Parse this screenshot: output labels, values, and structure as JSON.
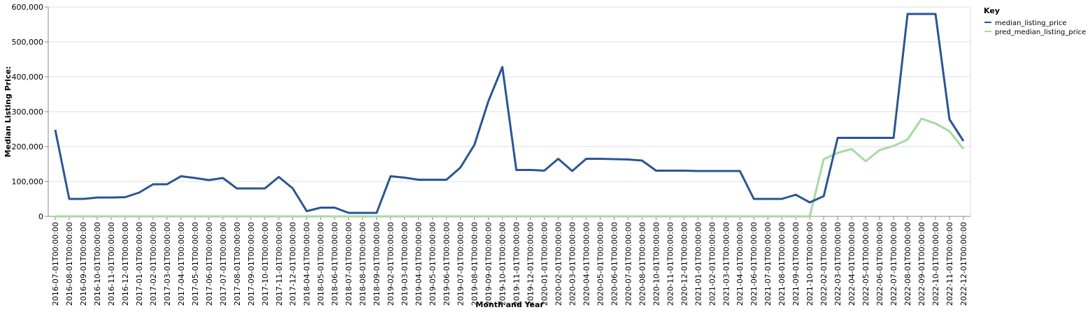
{
  "chart_data": {
    "type": "line",
    "x_label": "Month and Year",
    "y_label": "Median Listing Price:",
    "legend_title": "Key",
    "legend_position": "right",
    "grid": true,
    "categories": [
      "2016-07-01T00:00:00",
      "2016-08-01T00:00:00",
      "2016-09-01T00:00:00",
      "2016-10-01T00:00:00",
      "2016-11-01T00:00:00",
      "2016-12-01T00:00:00",
      "2017-01-01T00:00:00",
      "2017-02-01T00:00:00",
      "2017-03-01T00:00:00",
      "2017-04-01T00:00:00",
      "2017-05-01T00:00:00",
      "2017-06-01T00:00:00",
      "2017-07-01T00:00:00",
      "2017-08-01T00:00:00",
      "2017-09-01T00:00:00",
      "2017-10-01T00:00:00",
      "2017-11-01T00:00:00",
      "2017-12-01T00:00:00",
      "2018-04-01T00:00:00",
      "2018-05-01T00:00:00",
      "2018-06-01T00:00:00",
      "2018-07-01T00:00:00",
      "2018-08-01T00:00:00",
      "2018-09-01T00:00:00",
      "2019-02-01T00:00:00",
      "2019-03-01T00:00:00",
      "2019-04-01T00:00:00",
      "2019-05-01T00:00:00",
      "2019-06-01T00:00:00",
      "2019-07-01T00:00:00",
      "2019-08-01T00:00:00",
      "2019-09-01T00:00:00",
      "2019-10-01T00:00:00",
      "2019-11-01T00:00:00",
      "2019-12-01T00:00:00",
      "2020-01-01T00:00:00",
      "2020-02-01T00:00:00",
      "2020-03-01T00:00:00",
      "2020-04-01T00:00:00",
      "2020-05-01T00:00:00",
      "2020-06-01T00:00:00",
      "2020-07-01T00:00:00",
      "2020-08-01T00:00:00",
      "2020-10-01T00:00:00",
      "2020-11-01T00:00:00",
      "2020-12-01T00:00:00",
      "2021-01-01T00:00:00",
      "2021-02-01T00:00:00",
      "2021-03-01T00:00:00",
      "2021-04-01T00:00:00",
      "2021-06-01T00:00:00",
      "2021-07-01T00:00:00",
      "2021-08-01T00:00:00",
      "2021-09-01T00:00:00",
      "2021-10-01T00:00:00",
      "2022-02-01T00:00:00",
      "2022-03-01T00:00:00",
      "2022-04-01T00:00:00",
      "2022-05-01T00:00:00",
      "2022-06-01T00:00:00",
      "2022-07-01T00:00:00",
      "2022-08-01T00:00:00",
      "2022-09-01T00:00:00",
      "2022-10-01T00:00:00",
      "2022-11-01T00:00:00",
      "2022-12-01T00:00:00"
    ],
    "series": [
      {
        "name": "median_listing_price",
        "color": "#2a5594",
        "values": [
          248000,
          50000,
          50000,
          54000,
          54000,
          55000,
          68000,
          92000,
          92000,
          115000,
          110000,
          104000,
          110000,
          80000,
          80000,
          80000,
          113000,
          80000,
          15000,
          25000,
          25000,
          10000,
          10000,
          10000,
          115000,
          111000,
          105000,
          105000,
          105000,
          140000,
          205000,
          330000,
          428000,
          133000,
          133000,
          131000,
          165000,
          130000,
          165000,
          165000,
          164000,
          163000,
          160000,
          131000,
          131000,
          131000,
          130000,
          130000,
          130000,
          130000,
          50000,
          50000,
          50000,
          62000,
          40000,
          58000,
          225000,
          225000,
          225000,
          225000,
          225000,
          580000,
          580000,
          580000,
          278000,
          216000
        ]
      },
      {
        "name": "pred_median_listing_price",
        "color": "#a6dba0",
        "values": [
          0,
          0,
          0,
          0,
          0,
          0,
          0,
          0,
          0,
          0,
          0,
          0,
          0,
          0,
          0,
          0,
          0,
          0,
          0,
          0,
          0,
          0,
          0,
          0,
          0,
          0,
          0,
          0,
          0,
          0,
          0,
          0,
          0,
          0,
          0,
          0,
          0,
          0,
          0,
          0,
          0,
          0,
          0,
          0,
          0,
          0,
          0,
          0,
          0,
          0,
          0,
          0,
          0,
          0,
          0,
          164000,
          182000,
          193000,
          158000,
          190000,
          202000,
          220000,
          280000,
          266000,
          244000,
          193000
        ]
      }
    ],
    "ylim": [
      0,
      600000
    ],
    "yticks": [
      0,
      {
        "value": 100000,
        "label": "100,000"
      },
      {
        "value": 200000,
        "label": "200,000"
      },
      {
        "value": 300000,
        "label": "300,000"
      },
      {
        "value": 400000,
        "label": "400,000"
      },
      {
        "value": 500000,
        "label": "500,000"
      },
      {
        "value": 600000,
        "label": "600,000"
      }
    ]
  }
}
